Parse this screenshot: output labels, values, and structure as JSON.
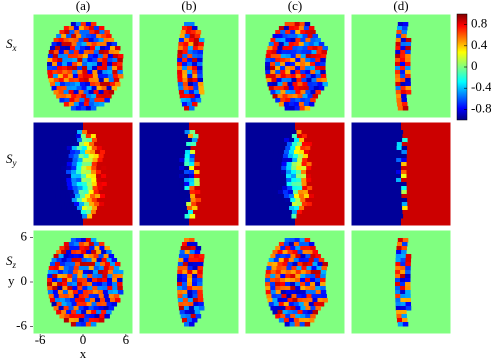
{
  "chart_data": {
    "type": "heatmap-grid",
    "columns": [
      "(a)",
      "(b)",
      "(c)",
      "(d)"
    ],
    "rows": [
      {
        "base": "S",
        "sub": "x"
      },
      {
        "base": "S",
        "sub": "y"
      },
      {
        "base": "S",
        "sub": "z"
      }
    ],
    "xaxis": {
      "label": "x",
      "lim": [
        -7,
        7
      ],
      "ticks": [
        -6,
        0,
        6
      ]
    },
    "yaxis": {
      "label": "y",
      "lim": [
        -7,
        7
      ],
      "ticks": [
        -6,
        0,
        6
      ]
    },
    "colorbar": {
      "clim": [
        -1,
        1
      ],
      "ticks": [
        0.8,
        0.4,
        0,
        -0.4,
        -0.8
      ]
    }
  }
}
